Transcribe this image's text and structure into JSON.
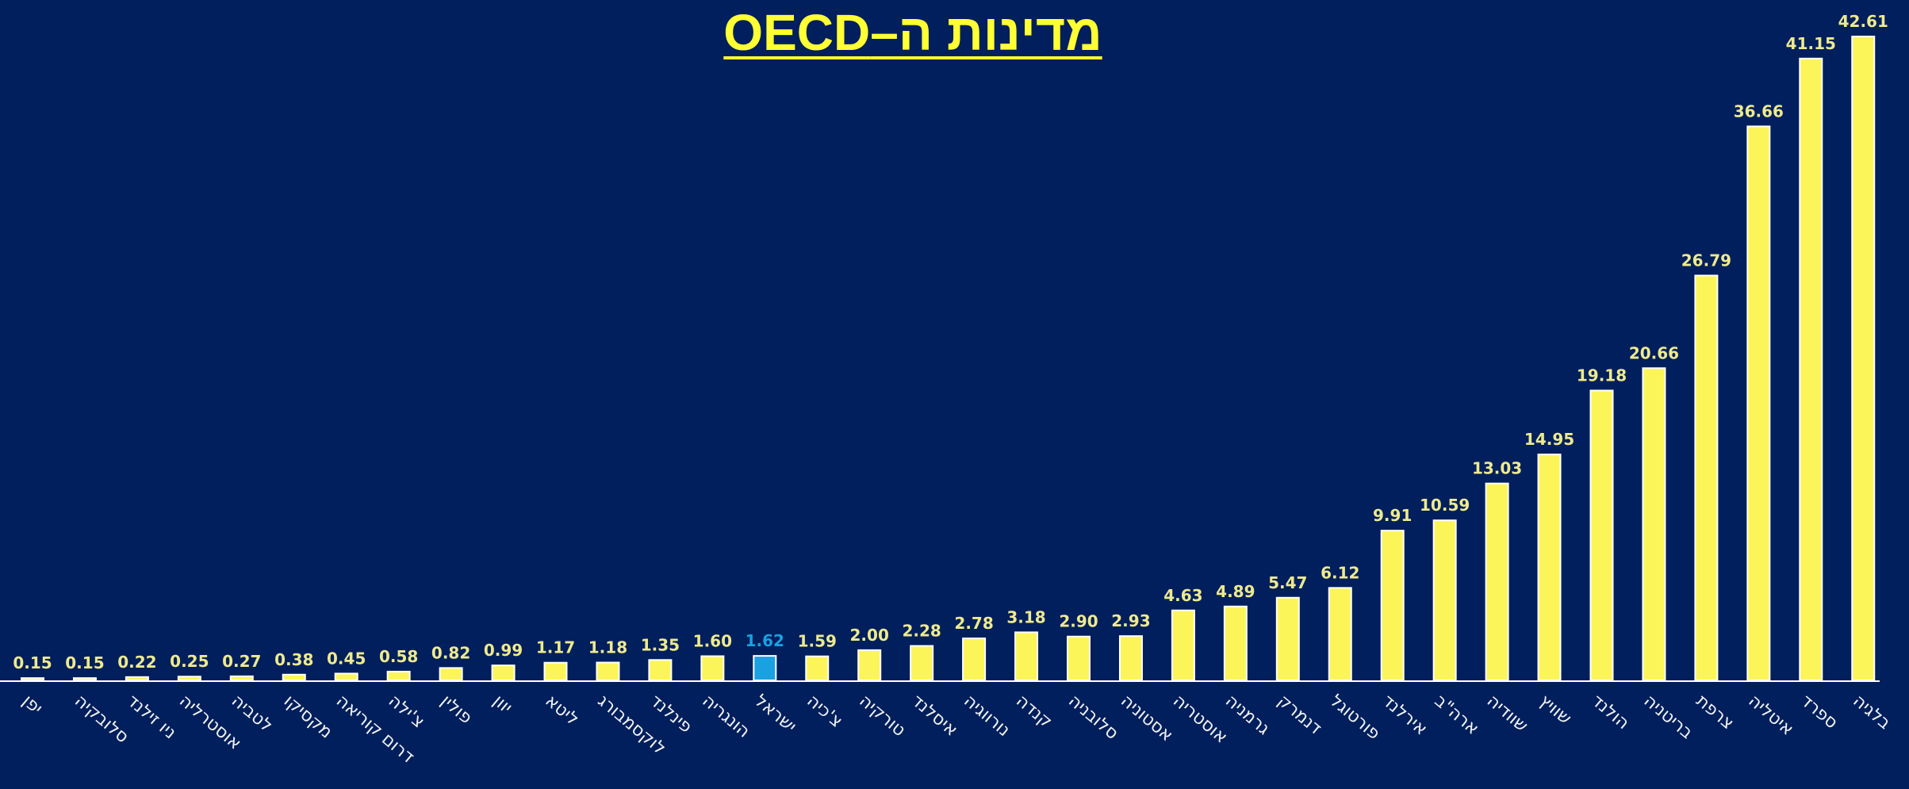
{
  "chart_data": {
    "type": "bar",
    "title": "מדינות ה–OECD",
    "categories": [
      "יפן",
      "סלובקיה",
      "ניו זילנד",
      "אוסטרליה",
      "לטביה",
      "מקסיקו",
      "דרום קוריאה",
      "צ'ילה",
      "פולין",
      "יוון",
      "ליטא",
      "לוקסמבורג",
      "פינלנד",
      "הונגריה",
      "ישראל",
      "צ'כיה",
      "טורקיה",
      "איסלנד",
      "נורווגיה",
      "קנדה",
      "סלובניה",
      "אסטוניה",
      "אוסטריה",
      "גרמניה",
      "דנמרק",
      "פורטוגל",
      "אירלנד",
      "ארה\"ב",
      "שוודיה",
      "שוויץ",
      "הולנד",
      "בריטניה",
      "צרפת",
      "איטליה",
      "ספרד",
      "בלגיה"
    ],
    "values": [
      0.15,
      0.15,
      0.22,
      0.25,
      0.27,
      0.38,
      0.45,
      0.58,
      0.82,
      0.99,
      1.17,
      1.18,
      1.35,
      1.6,
      1.62,
      1.59,
      2,
      2.28,
      2.78,
      3.18,
      2.9,
      2.93,
      4.63,
      4.89,
      5.47,
      6.12,
      9.91,
      10.59,
      13.03,
      14.95,
      19.18,
      20.66,
      26.79,
      36.66,
      41.15,
      42.61
    ],
    "value_labels": [
      "0.15",
      "0.15",
      "0.22",
      "0.25",
      "0.27",
      "0.38",
      "0.45",
      "0.58",
      "0.82",
      "0.99",
      "1.17",
      "1.18",
      "1.35",
      "1.60",
      "1.62",
      "1.59",
      "2.00",
      "2.28",
      "2.78",
      "3.18",
      "2.90",
      "2.93",
      "4.63",
      "4.89",
      "5.47",
      "6.12",
      "9.91",
      "10.59",
      "13.03",
      "14.95",
      "19.18",
      "20.66",
      "26.79",
      "36.66",
      "41.15",
      "42.61"
    ],
    "color": "#fbf55a",
    "value_label_color": "#eeea8e",
    "highlight": {
      "category": "ישראל",
      "color": "#1ba1e2"
    }
  }
}
